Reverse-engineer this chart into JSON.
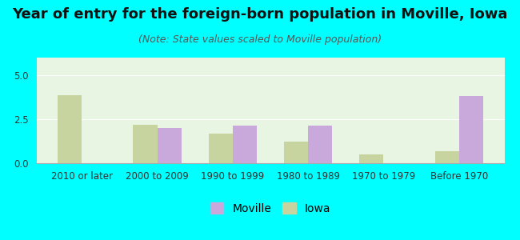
{
  "title": "Year of entry for the foreign-born population in Moville, Iowa",
  "subtitle": "(Note: State values scaled to Moville population)",
  "categories": [
    "2010 or later",
    "2000 to 2009",
    "1990 to 1999",
    "1980 to 1989",
    "1970 to 1979",
    "Before 1970"
  ],
  "moville_values": [
    0,
    2.0,
    2.15,
    2.15,
    0,
    3.8
  ],
  "iowa_values": [
    3.85,
    2.2,
    1.7,
    1.25,
    0.5,
    0.7
  ],
  "moville_color": "#c9a8dc",
  "iowa_color": "#c8d4a0",
  "background_color": "#00ffff",
  "plot_bg_color": "#e8f5e2",
  "ylim": [
    0,
    6
  ],
  "yticks": [
    0,
    2.5,
    5
  ],
  "bar_width": 0.32,
  "title_fontsize": 13,
  "subtitle_fontsize": 9,
  "legend_fontsize": 10,
  "tick_fontsize": 8.5
}
